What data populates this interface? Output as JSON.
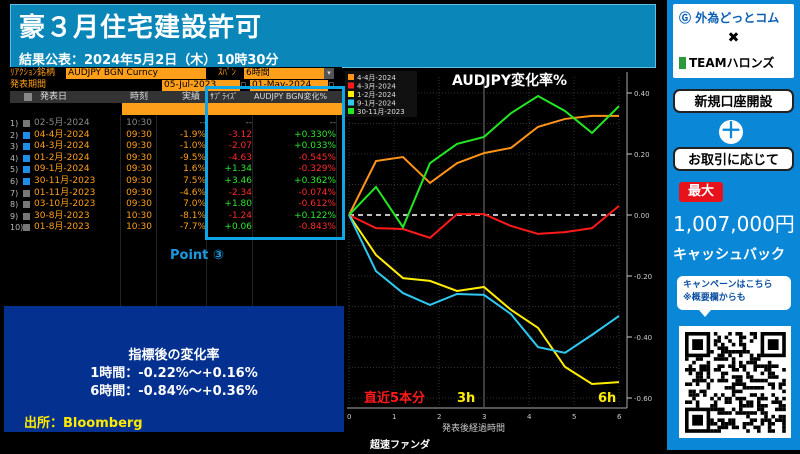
{
  "header": {
    "title": "豪３月住宅建設許可",
    "subtitle": "結果公表：2024年5月2日（木）10時30分"
  },
  "terminal": {
    "reaction_label": "ﾘｱｸｼｮﾝ銘柄",
    "reaction_value": "AUDJPY BGN Curncy",
    "span_label": "ｽﾊﾟﾝ",
    "span_value": "6時間",
    "period_label": "発表期間",
    "period_from": "05-Jul-2023",
    "period_to": "01-May-2024",
    "columns": [
      "発表日",
      "時刻",
      "実績",
      "ｻﾌﾟﾗｲｽﾞ",
      "AUDJPY BGN変化%"
    ],
    "rows": [
      {
        "idx": "1)",
        "checked": false,
        "date": "02-5月-2024",
        "time": "10:30",
        "actual": "--",
        "surprise": "--",
        "change": "--",
        "s": "dim",
        "c": "dim"
      },
      {
        "idx": "2)",
        "checked": true,
        "date": "04-4月-2024",
        "time": "09:30",
        "actual": "-1.9%",
        "surprise": "-3.12",
        "change": "+0.330%",
        "s": "neg",
        "c": "pos"
      },
      {
        "idx": "3)",
        "checked": true,
        "date": "04-3月-2024",
        "time": "09:30",
        "actual": "-1.0%",
        "surprise": "-2.07",
        "change": "+0.033%",
        "s": "neg",
        "c": "pos"
      },
      {
        "idx": "4)",
        "checked": true,
        "date": "01-2月-2024",
        "time": "09:30",
        "actual": "-9.5%",
        "surprise": "-4.63",
        "change": "-0.545%",
        "s": "neg",
        "c": "neg"
      },
      {
        "idx": "5)",
        "checked": true,
        "date": "09-1月-2024",
        "time": "09:30",
        "actual": "1.6%",
        "surprise": "+1.34",
        "change": "-0.329%",
        "s": "pos",
        "c": "neg"
      },
      {
        "idx": "6)",
        "checked": true,
        "date": "30-11月-2023",
        "time": "09:30",
        "actual": "7.5%",
        "surprise": "+3.46",
        "change": "+0.362%",
        "s": "pos",
        "c": "pos"
      },
      {
        "idx": "7)",
        "checked": false,
        "date": "01-11月-2023",
        "time": "09:30",
        "actual": "-4.6%",
        "surprise": "-2.34",
        "change": "-0.074%",
        "s": "neg",
        "c": "neg"
      },
      {
        "idx": "8)",
        "checked": false,
        "date": "03-10月-2023",
        "time": "09:30",
        "actual": "7.0%",
        "surprise": "+1.80",
        "change": "-0.612%",
        "s": "pos",
        "c": "neg"
      },
      {
        "idx": "9)",
        "checked": false,
        "date": "30-8月-2023",
        "time": "10:30",
        "actual": "-8.1%",
        "surprise": "-1.24",
        "change": "+0.122%",
        "s": "neg",
        "c": "pos"
      },
      {
        "idx": "10)",
        "checked": false,
        "date": "01-8月-2023",
        "time": "10:30",
        "actual": "-7.7%",
        "surprise": "+0.06",
        "change": "-0.843%",
        "s": "pos",
        "c": "neg"
      }
    ]
  },
  "annotation": {
    "point": "Point ③"
  },
  "summary": {
    "title": "指標後の変化率",
    "line1": "1時間：-0.22%～+0.16%",
    "line2": "6時間：-0.84%～+0.36%",
    "source": "出所：Bloomberg"
  },
  "chart_labels": {
    "recent": "直近5本分",
    "h3": "3h",
    "h6": "6h",
    "footer": "超速ファンダ"
  },
  "chart_data": {
    "type": "line",
    "title": "AUDJPY変化率%",
    "xlabel": "発表後経過時間",
    "ylabel": "",
    "xlim": [
      0,
      6
    ],
    "ylim": [
      -0.65,
      0.45
    ],
    "xticks": [
      0,
      1,
      2,
      3,
      4,
      5,
      6
    ],
    "yticks": [
      0.4,
      0.2,
      0.0,
      -0.2,
      -0.4,
      -0.6
    ],
    "ytick_labels": [
      "0.40",
      "0.20",
      "0.00",
      "-0.20",
      "-0.40",
      "-0.60"
    ],
    "legend_position": "top-left",
    "grid": true,
    "x": [
      0,
      0.6,
      1.2,
      1.8,
      2.4,
      3.0,
      3.6,
      4.2,
      4.8,
      5.4,
      6.0
    ],
    "series": [
      {
        "name": "4-4月-2024",
        "color": "#ff9419",
        "values": [
          0,
          0.177,
          0.19,
          0.105,
          0.17,
          0.203,
          0.22,
          0.289,
          0.315,
          0.325,
          0.325
        ]
      },
      {
        "name": "4-3月-2024",
        "color": "#ff1a1a",
        "values": [
          0,
          -0.043,
          -0.046,
          -0.075,
          0.003,
          0.003,
          -0.036,
          -0.062,
          -0.056,
          -0.043,
          0.03
        ]
      },
      {
        "name": "1-2月-2024",
        "color": "#ffee00",
        "values": [
          0,
          -0.131,
          -0.207,
          -0.216,
          -0.249,
          -0.236,
          -0.311,
          -0.37,
          -0.498,
          -0.554,
          -0.548
        ]
      },
      {
        "name": "9-1月-2024",
        "color": "#2ec8f0",
        "values": [
          0,
          -0.184,
          -0.256,
          -0.295,
          -0.259,
          -0.262,
          -0.325,
          -0.433,
          -0.452,
          -0.393,
          -0.331
        ]
      },
      {
        "name": "30-11月-2023",
        "color": "#22e822",
        "values": [
          0,
          0.092,
          -0.04,
          0.17,
          0.233,
          0.256,
          0.334,
          0.39,
          0.341,
          0.269,
          0.357
        ]
      }
    ]
  },
  "ad": {
    "brand1": "外為どっとコム",
    "cross": "✖",
    "brand2": "TEAMハロンズ",
    "pill1": "新規口座開設",
    "plus": "＋",
    "pill2": "お取引に応じて",
    "max": "最大",
    "amount": "1,007,000円",
    "cashback": "キャッシュバック",
    "bubble1": "キャンペーンはこちら",
    "bubble2": "※概要欄からも"
  }
}
